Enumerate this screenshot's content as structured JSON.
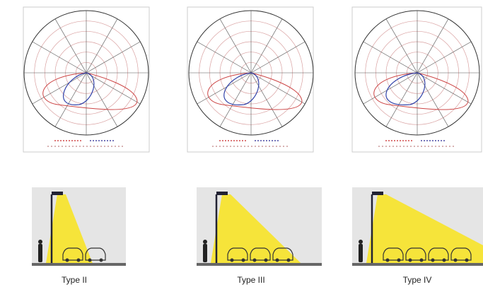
{
  "panels": [
    {
      "label": "Type II"
    },
    {
      "label": "Type III"
    },
    {
      "label": "Type IV"
    }
  ]
}
